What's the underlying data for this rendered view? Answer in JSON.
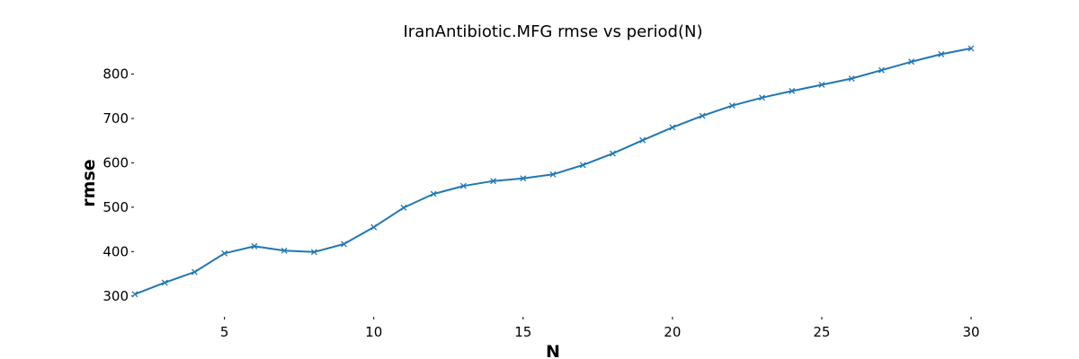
{
  "chart_data": {
    "type": "line",
    "title": "IranAntibiotic.MFG rmse vs period(N)",
    "xlabel": "N",
    "ylabel": "rmse",
    "xlim": [
      2,
      30
    ],
    "ylim": [
      255,
      870
    ],
    "xticks": [
      5,
      10,
      15,
      20,
      25,
      30
    ],
    "yticks": [
      300,
      400,
      500,
      600,
      700,
      800
    ],
    "grid": false,
    "marker": "x",
    "color": "#1f77b4",
    "x": [
      2,
      3,
      4,
      5,
      6,
      7,
      8,
      9,
      10,
      11,
      12,
      13,
      14,
      15,
      16,
      17,
      18,
      19,
      20,
      21,
      22,
      23,
      24,
      25,
      26,
      27,
      28,
      29,
      30
    ],
    "values": [
      304,
      330,
      354,
      396,
      412,
      402,
      399,
      417,
      455,
      499,
      530,
      548,
      559,
      565,
      574,
      595,
      621,
      651,
      680,
      706,
      729,
      747,
      762,
      776,
      790,
      809,
      828,
      845,
      858
    ]
  }
}
